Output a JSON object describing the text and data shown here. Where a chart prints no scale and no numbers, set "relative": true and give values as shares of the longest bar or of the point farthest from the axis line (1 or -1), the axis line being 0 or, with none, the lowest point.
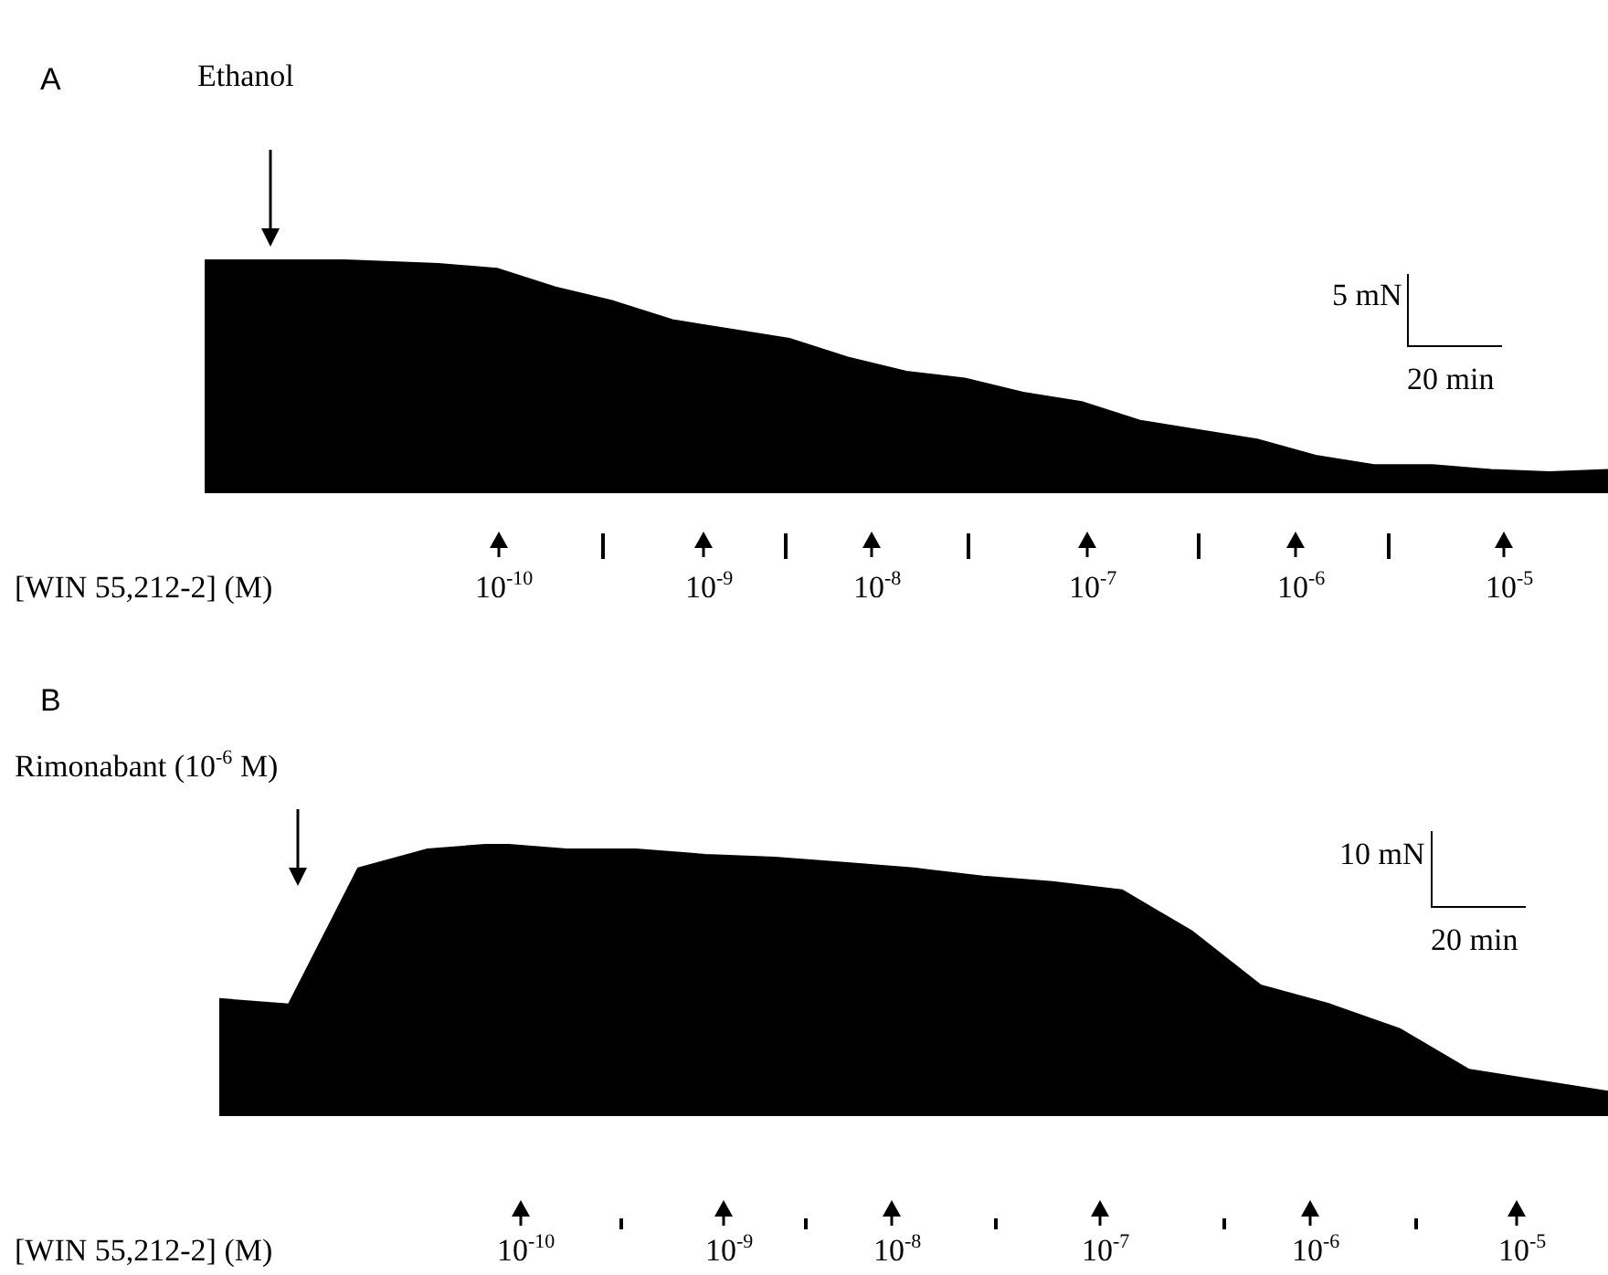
{
  "chart_data": [
    {
      "type": "area",
      "title": "A",
      "relative": true,
      "color": "#000000",
      "categories": [
        null,
        null,
        null,
        null,
        null,
        null,
        null,
        null,
        null,
        null,
        null,
        null,
        null,
        null,
        null,
        null,
        null,
        null,
        null,
        null,
        null,
        null,
        null,
        null,
        null
      ],
      "values": [
        1,
        1,
        1,
        0.99,
        0.98,
        0.96,
        0.88,
        0.82,
        0.74,
        0.7,
        0.66,
        0.58,
        0.52,
        0.49,
        0.43,
        0.39,
        0.31,
        0.27,
        0.23,
        0.16,
        0.12,
        0.12,
        0.1,
        0.09,
        0.1
      ],
      "annotations": [
        "Ethanol",
        "[WIN 55,212-2] (M)",
        "10$^{-10}$",
        "10$^{-9}$",
        "10$^{-8}$",
        "10$^{-7}$",
        "10$^{-6}$",
        "10$^{-5}$",
        "5 mN",
        "20 min"
      ]
    },
    {
      "type": "area",
      "title": "B",
      "relative": true,
      "color": "#000000",
      "categories": [
        null,
        null,
        null,
        null,
        null,
        null,
        null,
        null,
        null,
        null,
        null,
        null,
        null,
        null,
        null,
        null,
        null,
        null,
        null,
        null,
        null
      ],
      "values": [
        0.43,
        0.41,
        0.91,
        0.98,
        1,
        0.98,
        0.98,
        0.96,
        0.95,
        0.93,
        0.91,
        0.88,
        0.86,
        0.83,
        0.68,
        0.48,
        0.41,
        0.32,
        0.17,
        0.13,
        0.09
      ],
      "annotations": [
        "Rimonabant (10$^{-6}$ M)",
        "[WIN 55,212-2] (M)",
        "10$^{-10}$",
        "10$^{-9}$",
        "10$^{-8}$",
        "10$^{-7}$",
        "10$^{-6}$",
        "10$^{-5}$",
        "10 mN",
        "20 min"
      ]
    }
  ]
}
